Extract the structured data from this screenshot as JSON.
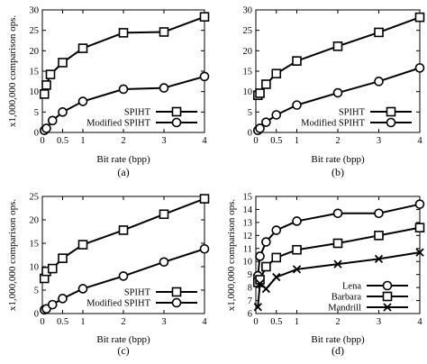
{
  "chart_data": [
    {
      "type": "line",
      "caption": "(a)",
      "xlabel": "Bit rate (bpp)",
      "ylabel": "x1,000,000 comparison ops.",
      "xlim": [
        0,
        4
      ],
      "ylim": [
        0,
        30
      ],
      "xticks": [
        0,
        0.5,
        1,
        2,
        3,
        4
      ],
      "xtick_labels": [
        "0",
        "0.5",
        "1",
        "2",
        "3",
        "4"
      ],
      "yticks": [
        0,
        5,
        10,
        15,
        20,
        25,
        30
      ],
      "ytick_labels": [
        "0",
        "5",
        "10",
        "15",
        "20",
        "25",
        "30"
      ],
      "grid": false,
      "legend_position": "bottom-right",
      "series": [
        {
          "name": "SPIHT",
          "marker": "square",
          "x": [
            0.05,
            0.1,
            0.2,
            0.5,
            1,
            2,
            3,
            4
          ],
          "y": [
            9.4,
            11.6,
            14.2,
            17.1,
            20.6,
            24.4,
            24.6,
            28.3
          ]
        },
        {
          "name": "Modified SPIHT",
          "marker": "circle",
          "x": [
            0.05,
            0.1,
            0.25,
            0.5,
            1,
            2,
            3,
            4
          ],
          "y": [
            0.5,
            1.0,
            2.9,
            5.0,
            7.6,
            10.6,
            10.9,
            13.7
          ]
        }
      ]
    },
    {
      "type": "line",
      "caption": "(b)",
      "xlabel": "Bit rate (bpp)",
      "ylabel": "",
      "xlim": [
        0,
        4
      ],
      "ylim": [
        0,
        30
      ],
      "xticks": [
        0,
        0.5,
        1,
        2,
        3,
        4
      ],
      "xtick_labels": [
        "0",
        "0.5",
        "1",
        "2",
        "3",
        "4"
      ],
      "yticks": [
        0,
        5,
        10,
        15,
        20,
        25,
        30
      ],
      "ytick_labels": [
        "0",
        "5",
        "10",
        "15",
        "20",
        "25",
        "30"
      ],
      "grid": false,
      "legend_position": "bottom-right",
      "series": [
        {
          "name": "SPIHT",
          "marker": "square",
          "x": [
            0.05,
            0.1,
            0.25,
            0.5,
            1,
            2,
            3,
            4
          ],
          "y": [
            9.1,
            9.6,
            11.8,
            14.4,
            17.5,
            21.1,
            24.5,
            28.2
          ]
        },
        {
          "name": "Modified SPIHT",
          "marker": "circle",
          "x": [
            0.05,
            0.1,
            0.25,
            0.5,
            1,
            2,
            3,
            4
          ],
          "y": [
            0.5,
            1.0,
            2.5,
            4.3,
            6.7,
            9.7,
            12.5,
            15.8
          ]
        }
      ]
    },
    {
      "type": "line",
      "caption": "(c)",
      "xlabel": "Bit rate (bpp)",
      "ylabel": "x1,000,000 comparison ops.",
      "xlim": [
        0,
        4
      ],
      "ylim": [
        0,
        25
      ],
      "xticks": [
        0,
        0.5,
        1,
        2,
        3,
        4
      ],
      "xtick_labels": [
        "0",
        "0.5",
        "1",
        "2",
        "3",
        "4"
      ],
      "yticks": [
        0,
        5,
        10,
        15,
        20,
        25
      ],
      "ytick_labels": [
        "0",
        "5",
        "10",
        "15",
        "20",
        "25"
      ],
      "grid": false,
      "legend_position": "bottom-right",
      "series": [
        {
          "name": "SPIHT",
          "marker": "square",
          "x": [
            0.05,
            0.1,
            0.25,
            0.5,
            1,
            2,
            3,
            4
          ],
          "y": [
            7.5,
            9.0,
            9.6,
            11.8,
            14.7,
            17.8,
            21.2,
            24.5
          ]
        },
        {
          "name": "Modified SPIHT",
          "marker": "circle",
          "x": [
            0.05,
            0.1,
            0.25,
            0.5,
            1,
            2,
            3,
            4
          ],
          "y": [
            0.8,
            1.0,
            1.9,
            3.2,
            5.3,
            8.0,
            11.0,
            13.8
          ]
        }
      ]
    },
    {
      "type": "line",
      "caption": "(d)",
      "xlabel": "Bit rate (bpp)",
      "ylabel": "x1,000,000 comparison ops.",
      "xlim": [
        0,
        4
      ],
      "ylim": [
        6,
        15
      ],
      "xticks": [
        0,
        0.5,
        1,
        2,
        3,
        4
      ],
      "xtick_labels": [
        "0",
        "0.5",
        "1",
        "2",
        "3",
        "4"
      ],
      "yticks": [
        6,
        7,
        8,
        9,
        10,
        11,
        12,
        13,
        14,
        15
      ],
      "ytick_labels": [
        "6",
        "7",
        "8",
        "9",
        "10",
        "11",
        "12",
        "13",
        "14",
        "15"
      ],
      "grid": false,
      "legend_position": "bottom-right",
      "series": [
        {
          "name": "Lena",
          "marker": "circle",
          "x": [
            0.05,
            0.1,
            0.25,
            0.5,
            1,
            2,
            3,
            4
          ],
          "y": [
            8.9,
            10.4,
            11.5,
            12.4,
            13.1,
            13.7,
            13.7,
            14.4
          ]
        },
        {
          "name": "Barbara",
          "marker": "square",
          "x": [
            0.05,
            0.1,
            0.25,
            0.5,
            1,
            2,
            3,
            4
          ],
          "y": [
            8.4,
            8.6,
            9.6,
            10.3,
            10.9,
            11.4,
            12.0,
            12.6
          ]
        },
        {
          "name": "Mandrill",
          "marker": "x",
          "x": [
            0.05,
            0.1,
            0.25,
            0.5,
            1,
            2,
            3,
            4
          ],
          "y": [
            6.5,
            8.3,
            7.9,
            8.8,
            9.4,
            9.8,
            10.2,
            10.7
          ]
        }
      ]
    }
  ]
}
